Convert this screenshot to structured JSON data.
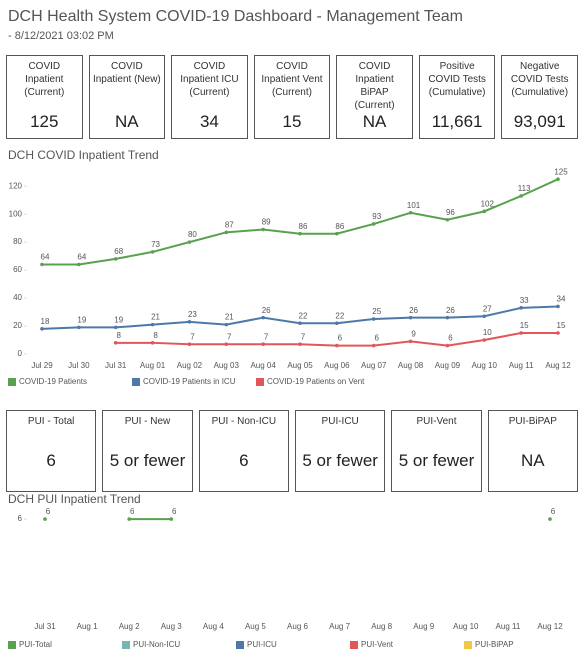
{
  "header": {
    "title": "DCH Health System COVID-19 Dashboard - Management Team",
    "subtitle": "- 8/12/2021 03:02 PM"
  },
  "kpis": [
    {
      "label": "COVID Inpatient (Current)",
      "value": "125"
    },
    {
      "label": "COVID Inpatient (New)",
      "value": "NA"
    },
    {
      "label": "COVID Inpatient ICU (Current)",
      "value": "34"
    },
    {
      "label": "COVID Inpatient Vent (Current)",
      "value": "15"
    },
    {
      "label": "COVID Inpatient BiPAP (Current)",
      "value": "NA"
    },
    {
      "label": "Positive COVID Tests (Cumulative)",
      "value": "11,661"
    },
    {
      "label": "Negative COVID Tests (Cumulative)",
      "value": "93,091"
    }
  ],
  "pui_kpis": [
    {
      "label": "PUI - Total",
      "value": "6"
    },
    {
      "label": "PUI - New",
      "value": "5 or fewer"
    },
    {
      "label": "PUI - Non-ICU",
      "value": "6"
    },
    {
      "label": "PUI-ICU",
      "value": "5 or fewer"
    },
    {
      "label": "PUI-Vent",
      "value": "5 or fewer"
    },
    {
      "label": "PUI-BiPAP",
      "value": "NA"
    }
  ],
  "chart_data": [
    {
      "type": "line",
      "title": "DCH COVID Inpatient Trend",
      "categories": [
        "Jul 29",
        "Jul 30",
        "Jul 31",
        "Aug 01",
        "Aug 02",
        "Aug 03",
        "Aug 04",
        "Aug 05",
        "Aug 06",
        "Aug 07",
        "Aug 08",
        "Aug 09",
        "Aug 10",
        "Aug 11",
        "Aug 12"
      ],
      "series": [
        {
          "name": "COVID-19 Patients",
          "color": "#59a14f",
          "values": [
            64,
            64,
            68,
            73,
            80,
            87,
            89,
            86,
            86,
            93,
            101,
            96,
            102,
            113,
            125
          ]
        },
        {
          "name": "COVID-19 Patients in ICU",
          "color": "#4e79a7",
          "values": [
            18,
            19,
            19,
            21,
            23,
            21,
            26,
            22,
            22,
            25,
            26,
            26,
            27,
            33,
            34
          ]
        },
        {
          "name": "COVID-19 Patients on Vent",
          "color": "#e15759",
          "values": [
            null,
            null,
            8,
            8,
            7,
            7,
            7,
            7,
            6,
            6,
            9,
            6,
            10,
            15,
            15
          ]
        }
      ],
      "ylim": [
        0,
        128
      ],
      "yticks": [
        0,
        20,
        40,
        60,
        80,
        100,
        120
      ]
    },
    {
      "type": "line",
      "title": "DCH PUI Inpatient Trend",
      "categories": [
        "Jul 31",
        "Aug 1",
        "Aug 2",
        "Aug 3",
        "Aug 4",
        "Aug 5",
        "Aug 6",
        "Aug 7",
        "Aug 8",
        "Aug 9",
        "Aug 10",
        "Aug 11",
        "Aug 12"
      ],
      "series": [
        {
          "name": "PUI-Total",
          "color": "#59a14f",
          "values": [
            6,
            null,
            6,
            6,
            null,
            null,
            null,
            null,
            null,
            null,
            null,
            null,
            6
          ]
        },
        {
          "name": "PUI-Non-ICU",
          "color": "#76b7b2",
          "values": [
            null,
            null,
            null,
            null,
            null,
            null,
            null,
            null,
            null,
            null,
            null,
            null,
            null
          ]
        },
        {
          "name": "PUI-ICU",
          "color": "#4e79a7",
          "values": [
            null,
            null,
            null,
            null,
            null,
            null,
            null,
            null,
            null,
            null,
            null,
            null,
            null
          ]
        },
        {
          "name": "PUI-Vent",
          "color": "#e15759",
          "values": [
            null,
            null,
            null,
            null,
            null,
            null,
            null,
            null,
            null,
            null,
            null,
            null,
            null
          ]
        },
        {
          "name": "PUI-BiPAP",
          "color": "#edc948",
          "values": [
            null,
            null,
            null,
            null,
            null,
            null,
            null,
            null,
            null,
            null,
            null,
            null,
            null
          ]
        }
      ],
      "ylim": [
        0,
        6.4
      ],
      "yticks": [
        6
      ]
    }
  ]
}
